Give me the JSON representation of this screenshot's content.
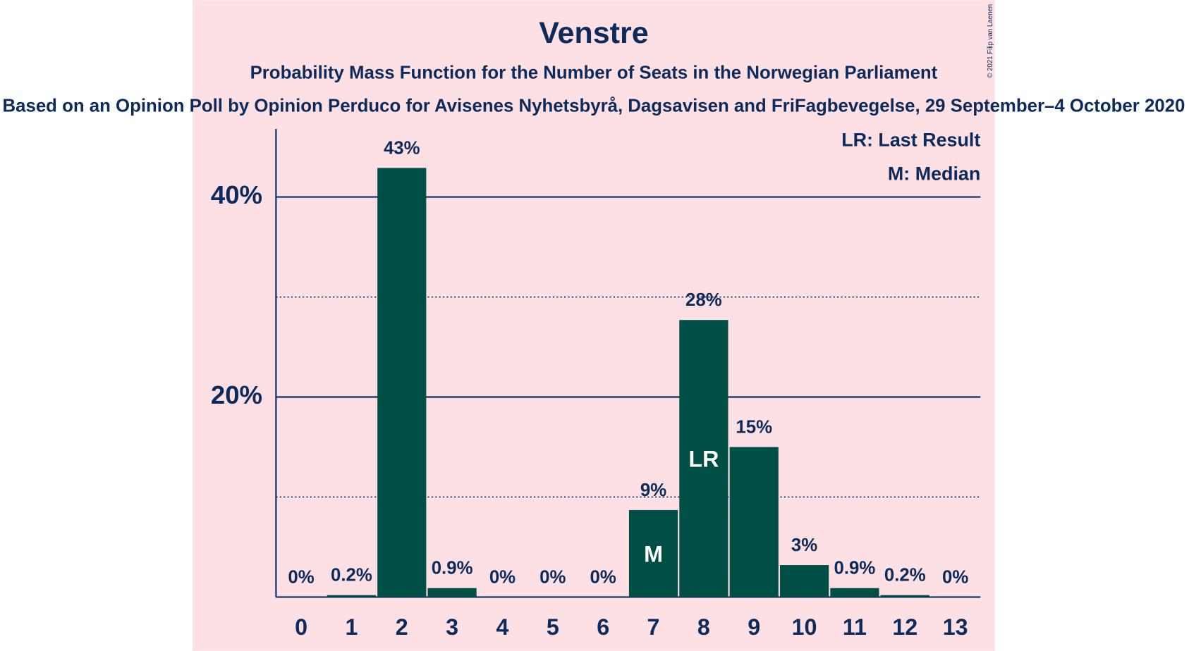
{
  "chart_data": {
    "type": "bar",
    "title": "Venstre",
    "subtitle": "Probability Mass Function for the Number of Seats in the Norwegian Parliament",
    "caption": "Based on an Opinion Poll by Opinion Perduco for Avisenes Nyhetsbyrå, Dagsavisen and FriFagbevegelse, 29 September–4 October 2020",
    "copyright": "© 2021 Filip van Laenen",
    "legend_notes": [
      "LR: Last Result",
      "M: Median"
    ],
    "categories": [
      "0",
      "1",
      "2",
      "3",
      "4",
      "5",
      "6",
      "7",
      "8",
      "9",
      "10",
      "11",
      "12",
      "13"
    ],
    "values": [
      0,
      0.2,
      42.9,
      0.9,
      0,
      0,
      0,
      8.7,
      27.7,
      15,
      3.2,
      0.9,
      0.2,
      0
    ],
    "value_labels": [
      "0%",
      "0.2%",
      "43%",
      "0.9%",
      "0%",
      "0%",
      "0%",
      "9%",
      "28%",
      "15%",
      "3%",
      "0.9%",
      "0.2%",
      "0%"
    ],
    "bar_markers": [
      {
        "index": 7,
        "label": "M"
      },
      {
        "index": 8,
        "label": "LR"
      }
    ],
    "color": "#004f46",
    "ylim": [
      0,
      46.8
    ],
    "yticks": [
      {
        "value": 20,
        "label": "20%"
      },
      {
        "value": 40,
        "label": "40%"
      }
    ],
    "minor_yticks": [
      10,
      30
    ],
    "grid": true
  }
}
